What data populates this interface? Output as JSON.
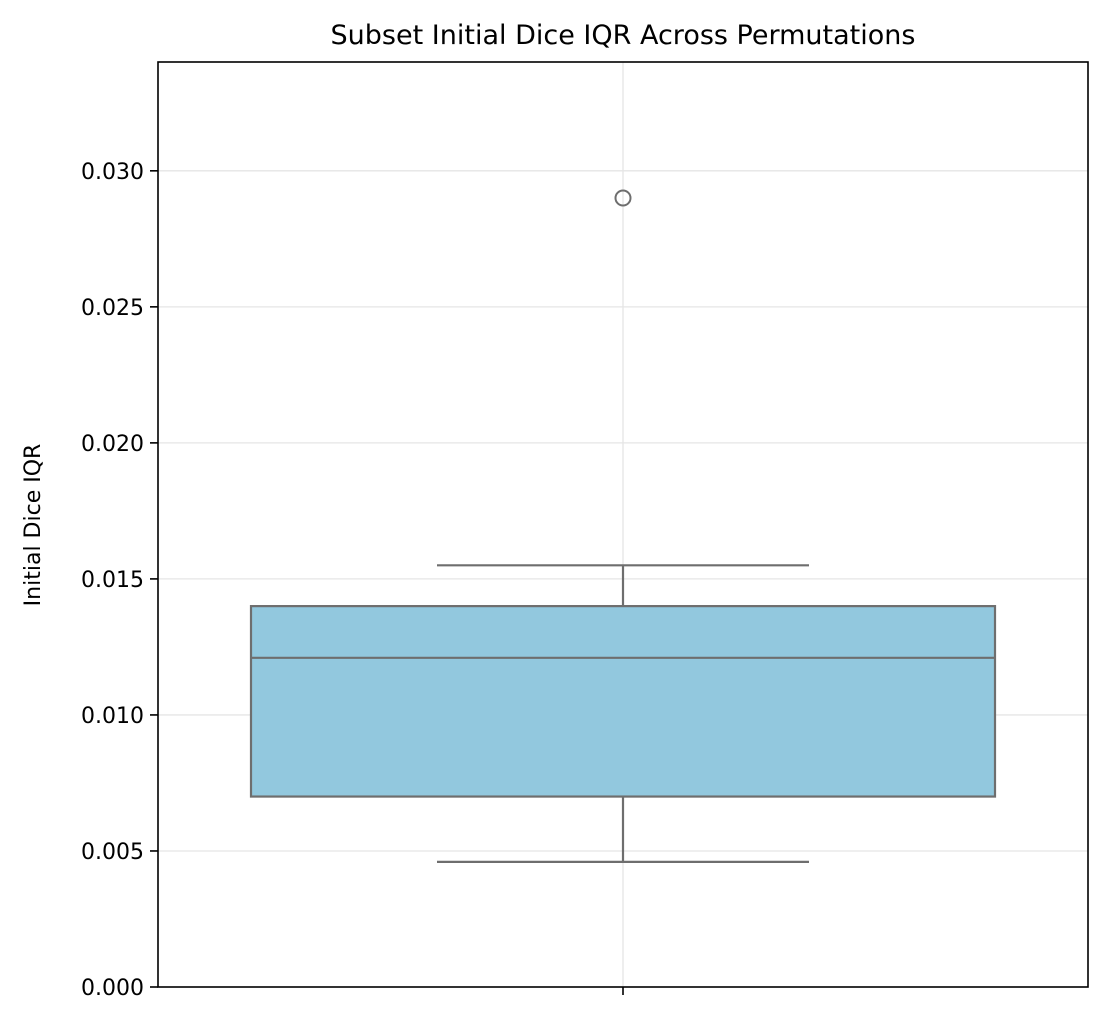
{
  "chart_data": {
    "type": "box",
    "title": "Subset Initial Dice IQR Across Permutations",
    "xlabel": "",
    "ylabel": "Initial Dice IQR",
    "ylim": [
      0.0,
      0.034
    ],
    "yticks": [
      0.0,
      0.005,
      0.01,
      0.015,
      0.02,
      0.025,
      0.03
    ],
    "ytick_labels": [
      "0.000",
      "0.005",
      "0.010",
      "0.015",
      "0.020",
      "0.025",
      "0.030"
    ],
    "grid": true,
    "legend": "none",
    "box": {
      "whisker_low": 0.0046,
      "q1": 0.007,
      "median": 0.0121,
      "q3": 0.014,
      "whisker_high": 0.0155,
      "outliers": [
        0.029
      ]
    },
    "colors": {
      "box_fill": "#92c8de",
      "box_edge": "#6e6e6e",
      "grid": "#e5e5e5",
      "axes": "#000000"
    }
  }
}
